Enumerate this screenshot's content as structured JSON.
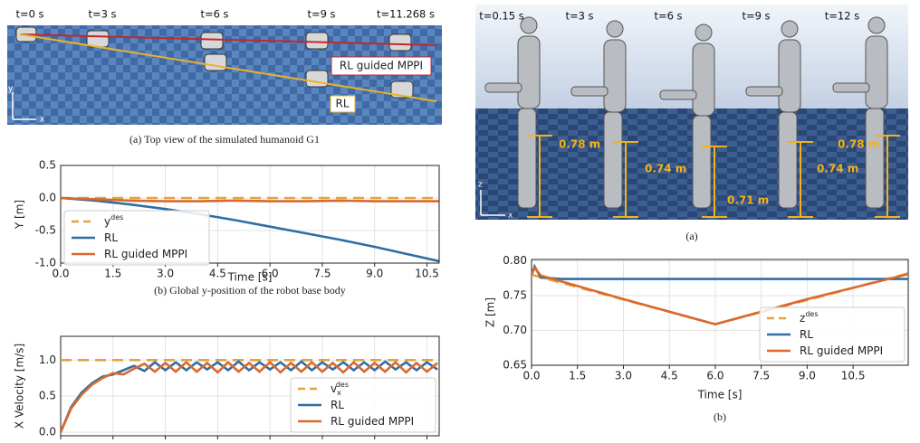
{
  "top_view": {
    "time_labels": [
      "t=0 s",
      "t=3 s",
      "t=6 s",
      "t=9 s",
      "t=11.268 s"
    ],
    "labels": [
      "RL guided MPPI",
      "RL"
    ],
    "axes": [
      "y",
      "x"
    ],
    "caption": "(a) Top view of the simulated humanoid G1"
  },
  "side_view": {
    "time_labels": [
      "t=0.15 s",
      "t=3 s",
      "t=6 s",
      "t=9 s",
      "t=12 s"
    ],
    "heights": [
      "0.78 m",
      "0.74 m",
      "0.71 m",
      "0.74 m",
      "0.78 m"
    ],
    "axes": [
      "z",
      "x"
    ],
    "caption": "(a)"
  },
  "chart_data": [
    {
      "type": "line",
      "caption": "(b) Global y-position of the robot base body",
      "xlabel": "Time [s]",
      "ylabel": "Y [m]",
      "xlim": [
        0,
        10.85
      ],
      "ylim": [
        -1.0,
        0.5
      ],
      "xticks": [
        {
          "value": 0,
          "label": "0.0"
        },
        1.5,
        {
          "value": 3,
          "label": "3.0"
        },
        4.5,
        {
          "value": 6,
          "label": "6.0"
        },
        7.5,
        {
          "value": 9,
          "label": "9.0"
        },
        10.5
      ],
      "yticks": [
        {
          "value": -1,
          "label": "-1.0"
        },
        -0.5,
        {
          "value": 0,
          "label": "0.0"
        },
        0.5
      ],
      "grid": true,
      "legend": "upper left",
      "series": [
        {
          "name": "y",
          "superscript": "des",
          "color": "#e6a23c",
          "style": "dashed",
          "x": [
            0,
            10.85
          ],
          "values": [
            0,
            0
          ]
        },
        {
          "name": "RL",
          "color": "#2f6ea5",
          "style": "solid",
          "x": [
            0,
            1,
            2,
            3,
            4,
            5,
            6,
            7,
            8,
            9,
            10,
            10.84
          ],
          "values": [
            0,
            -0.04,
            -0.1,
            -0.17,
            -0.25,
            -0.34,
            -0.44,
            -0.54,
            -0.64,
            -0.75,
            -0.87,
            -0.97
          ]
        },
        {
          "name": "RL guided MPPI",
          "color": "#d9692c",
          "style": "solid",
          "x": [
            0,
            1,
            2,
            3,
            4,
            5,
            6,
            7,
            8,
            9,
            10,
            10.84
          ],
          "values": [
            0,
            -0.02,
            -0.04,
            -0.05,
            -0.05,
            -0.04,
            -0.05,
            -0.05,
            -0.04,
            -0.05,
            -0.05,
            -0.05
          ]
        }
      ]
    },
    {
      "type": "line",
      "ylabel": "X Velocity [m/s]",
      "xlim": [
        0,
        10.85
      ],
      "ylim": [
        -0.05,
        1.33
      ],
      "xticks": [
        0,
        1.5,
        3,
        4.5,
        6,
        7.5,
        9,
        10.5
      ],
      "yticks": [
        {
          "value": 0,
          "label": "0.0"
        },
        0.5,
        {
          "value": 1,
          "label": "1.0"
        }
      ],
      "grid": true,
      "legend": "lower right",
      "series": [
        {
          "name": "v",
          "subscript": "x",
          "superscript": "des",
          "color": "#e6a23c",
          "style": "dashed",
          "x": [
            0,
            10.85
          ],
          "values": [
            1,
            1
          ]
        },
        {
          "name": "RL",
          "color": "#2f6ea5",
          "style": "solid",
          "x": [
            0,
            0.3,
            0.6,
            0.9,
            1.2,
            1.5,
            1.8,
            2.1,
            2.4,
            2.7,
            3.0,
            3.3,
            3.6,
            3.9,
            4.2,
            4.5,
            4.8,
            5.1,
            5.4,
            5.7,
            6.0,
            6.3,
            6.6,
            6.9,
            7.2,
            7.5,
            7.8,
            8.1,
            8.4,
            8.7,
            9.0,
            9.3,
            9.6,
            9.9,
            10.2,
            10.5,
            10.8
          ],
          "values": [
            0,
            0.35,
            0.55,
            0.68,
            0.77,
            0.8,
            0.86,
            0.92,
            0.85,
            0.97,
            0.86,
            0.97,
            0.86,
            0.97,
            0.87,
            0.97,
            0.86,
            0.98,
            0.86,
            0.97,
            0.87,
            0.97,
            0.86,
            0.98,
            0.86,
            0.97,
            0.87,
            0.97,
            0.86,
            0.97,
            0.86,
            0.98,
            0.87,
            0.97,
            0.86,
            0.97,
            0.87
          ]
        },
        {
          "name": "RL guided MPPI",
          "color": "#d9692c",
          "style": "solid",
          "x": [
            0,
            0.3,
            0.6,
            0.9,
            1.2,
            1.5,
            1.8,
            2.1,
            2.4,
            2.7,
            3.0,
            3.3,
            3.6,
            3.9,
            4.2,
            4.5,
            4.8,
            5.1,
            5.4,
            5.7,
            6.0,
            6.3,
            6.6,
            6.9,
            7.2,
            7.5,
            7.8,
            8.1,
            8.4,
            8.7,
            9.0,
            9.3,
            9.6,
            9.9,
            10.2,
            10.5,
            10.8
          ],
          "values": [
            0,
            0.33,
            0.52,
            0.66,
            0.75,
            0.82,
            0.8,
            0.88,
            0.95,
            0.84,
            0.96,
            0.84,
            0.97,
            0.84,
            0.96,
            0.83,
            0.97,
            0.84,
            0.96,
            0.84,
            0.97,
            0.83,
            0.96,
            0.84,
            0.97,
            0.84,
            0.96,
            0.83,
            0.97,
            0.84,
            0.96,
            0.84,
            0.97,
            0.83,
            0.96,
            0.84,
            0.96
          ]
        }
      ]
    },
    {
      "type": "line",
      "caption": "(b)",
      "xlabel": "Time [s]",
      "ylabel": "Z [m]",
      "xlim": [
        0,
        12.3
      ],
      "ylim": [
        0.65,
        0.802
      ],
      "xticks": [
        {
          "value": 0,
          "label": "0.0"
        },
        1.5,
        {
          "value": 3,
          "label": "3.0"
        },
        4.5,
        {
          "value": 6,
          "label": "6.0"
        },
        7.5,
        {
          "value": 9,
          "label": "9.0"
        },
        10.5
      ],
      "yticks": [
        0.65,
        {
          "value": 0.7,
          "label": "0.70"
        },
        0.75,
        {
          "value": 0.8,
          "label": "0.80"
        }
      ],
      "grid": true,
      "legend": "lower right",
      "series": [
        {
          "name": "z",
          "superscript": "des",
          "color": "#e6a23c",
          "style": "dashed",
          "x": [
            0,
            6,
            12.3
          ],
          "values": [
            0.78,
            0.709,
            0.782
          ]
        },
        {
          "name": "RL",
          "color": "#2f6ea5",
          "style": "solid",
          "x": [
            0,
            0.1,
            0.3,
            1,
            12.3
          ],
          "values": [
            0.78,
            0.792,
            0.776,
            0.774,
            0.774
          ]
        },
        {
          "name": "RL guided MPPI",
          "color": "#d9692c",
          "style": "solid",
          "x": [
            0,
            0.1,
            0.3,
            3,
            6,
            9,
            12.3
          ],
          "values": [
            0.78,
            0.79,
            0.779,
            0.745,
            0.709,
            0.745,
            0.781
          ]
        }
      ]
    }
  ]
}
